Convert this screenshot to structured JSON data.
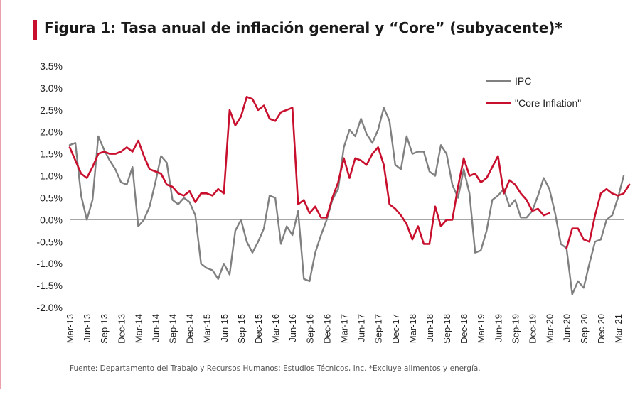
{
  "header": {
    "title": "Figura 1: Tasa anual de inflación general y “Core” (subyacente)*"
  },
  "footer": {
    "source": "Fuente: Departamento del Trabajo y Recursos Humanos; Estudios Técnicos, Inc. *Excluye alimentos y energía."
  },
  "colors": {
    "accent": "#c8102e",
    "ipc": "#808080",
    "core": "#c8102e"
  },
  "chart_data": {
    "type": "line",
    "title": "",
    "xlabel": "",
    "ylabel": "",
    "ylim": [
      -2.0,
      3.5
    ],
    "ytick_labels": [
      "3.5%",
      "3.0%",
      "2.5%",
      "2.0%",
      "1.5%",
      "1.0%",
      "0.5%",
      "0.0%",
      "-0.5%",
      "-1.0%",
      "-1.5%",
      "-2.0%"
    ],
    "ytick_values": [
      3.5,
      3.0,
      2.5,
      2.0,
      1.5,
      1.0,
      0.5,
      0.0,
      -0.5,
      -1.0,
      -1.5,
      -2.0
    ],
    "xtick_labels": [
      "Mar-13",
      "Jun-13",
      "Sep-13",
      "Dec-13",
      "Mar-14",
      "Jun-14",
      "Sep-14",
      "Dec-14",
      "Mar-15",
      "Jun-15",
      "Sep-15",
      "Dec-15",
      "Mar-16",
      "Jun-16",
      "Sep-16",
      "Dec-16",
      "Mar-17",
      "Jun-17",
      "Sep-17",
      "Dec-17",
      "Mar-18",
      "Jun-18",
      "Sep-18",
      "Dec-18",
      "Mar-19",
      "Jun-19",
      "Sep-19",
      "Dec-19",
      "Mar-20",
      "Jun-20",
      "Sep-20",
      "Dec-20",
      "Mar-21"
    ],
    "x_start": "2013-03",
    "x_end": "2021-03",
    "grid": false,
    "legend_position": "top-right",
    "series": [
      {
        "name": "IPC",
        "color": "#808080",
        "values": [
          1.7,
          1.75,
          0.55,
          0.0,
          0.45,
          1.9,
          1.6,
          1.35,
          1.15,
          0.85,
          0.8,
          1.2,
          -0.15,
          0.0,
          0.3,
          0.85,
          1.45,
          1.3,
          0.45,
          0.35,
          0.5,
          0.4,
          0.1,
          -1.0,
          -1.1,
          -1.15,
          -1.35,
          -1.0,
          -1.25,
          -0.25,
          0.0,
          -0.5,
          -0.75,
          -0.5,
          -0.2,
          0.55,
          0.5,
          -0.55,
          -0.15,
          -0.35,
          0.2,
          -1.35,
          -1.4,
          -0.75,
          -0.35,
          0.0,
          0.45,
          0.7,
          1.65,
          2.05,
          1.9,
          2.3,
          1.95,
          1.75,
          2.05,
          2.55,
          2.25,
          1.25,
          1.15,
          1.9,
          1.5,
          1.55,
          1.55,
          1.1,
          1.0,
          1.7,
          1.5,
          0.8,
          0.5,
          1.15,
          0.6,
          -0.75,
          -0.7,
          -0.25,
          0.45,
          0.55,
          0.7,
          0.3,
          0.45,
          0.05,
          0.05,
          0.2,
          0.55,
          0.95,
          0.7,
          0.15,
          -0.55,
          -0.65,
          -1.7,
          -1.4,
          -1.55,
          -1.0,
          -0.5,
          -0.45,
          0.0,
          0.1,
          0.5,
          1.0
        ],
        "null_ranges": []
      },
      {
        "name": "\"Core Inflation\"",
        "color": "#c8102e",
        "values": [
          1.65,
          1.35,
          1.05,
          0.95,
          1.2,
          1.5,
          1.55,
          1.5,
          1.5,
          1.55,
          1.65,
          1.55,
          1.8,
          1.45,
          1.15,
          1.1,
          1.05,
          0.8,
          0.75,
          0.6,
          0.55,
          0.65,
          0.4,
          0.6,
          0.6,
          0.55,
          0.7,
          0.6,
          2.5,
          2.15,
          2.35,
          2.8,
          2.75,
          2.5,
          2.6,
          2.3,
          2.25,
          2.45,
          2.5,
          2.55,
          0.35,
          0.45,
          0.15,
          0.3,
          0.05,
          0.05,
          0.5,
          0.85,
          1.4,
          0.95,
          1.4,
          1.35,
          1.25,
          1.5,
          1.65,
          1.25,
          0.35,
          0.25,
          0.1,
          -0.1,
          -0.45,
          -0.15,
          -0.55,
          -0.55,
          0.3,
          -0.15,
          0.0,
          0.0,
          0.75,
          1.4,
          1.0,
          1.05,
          0.85,
          0.95,
          1.2,
          1.45,
          0.6,
          0.9,
          0.8,
          0.6,
          0.45,
          0.2,
          0.25,
          0.1,
          0.15,
          null,
          null,
          -0.65,
          -0.2,
          -0.2,
          -0.45,
          -0.5,
          0.1,
          0.6,
          0.7,
          0.6,
          0.55,
          0.6,
          0.8
        ],
        "null_ranges": []
      }
    ]
  }
}
